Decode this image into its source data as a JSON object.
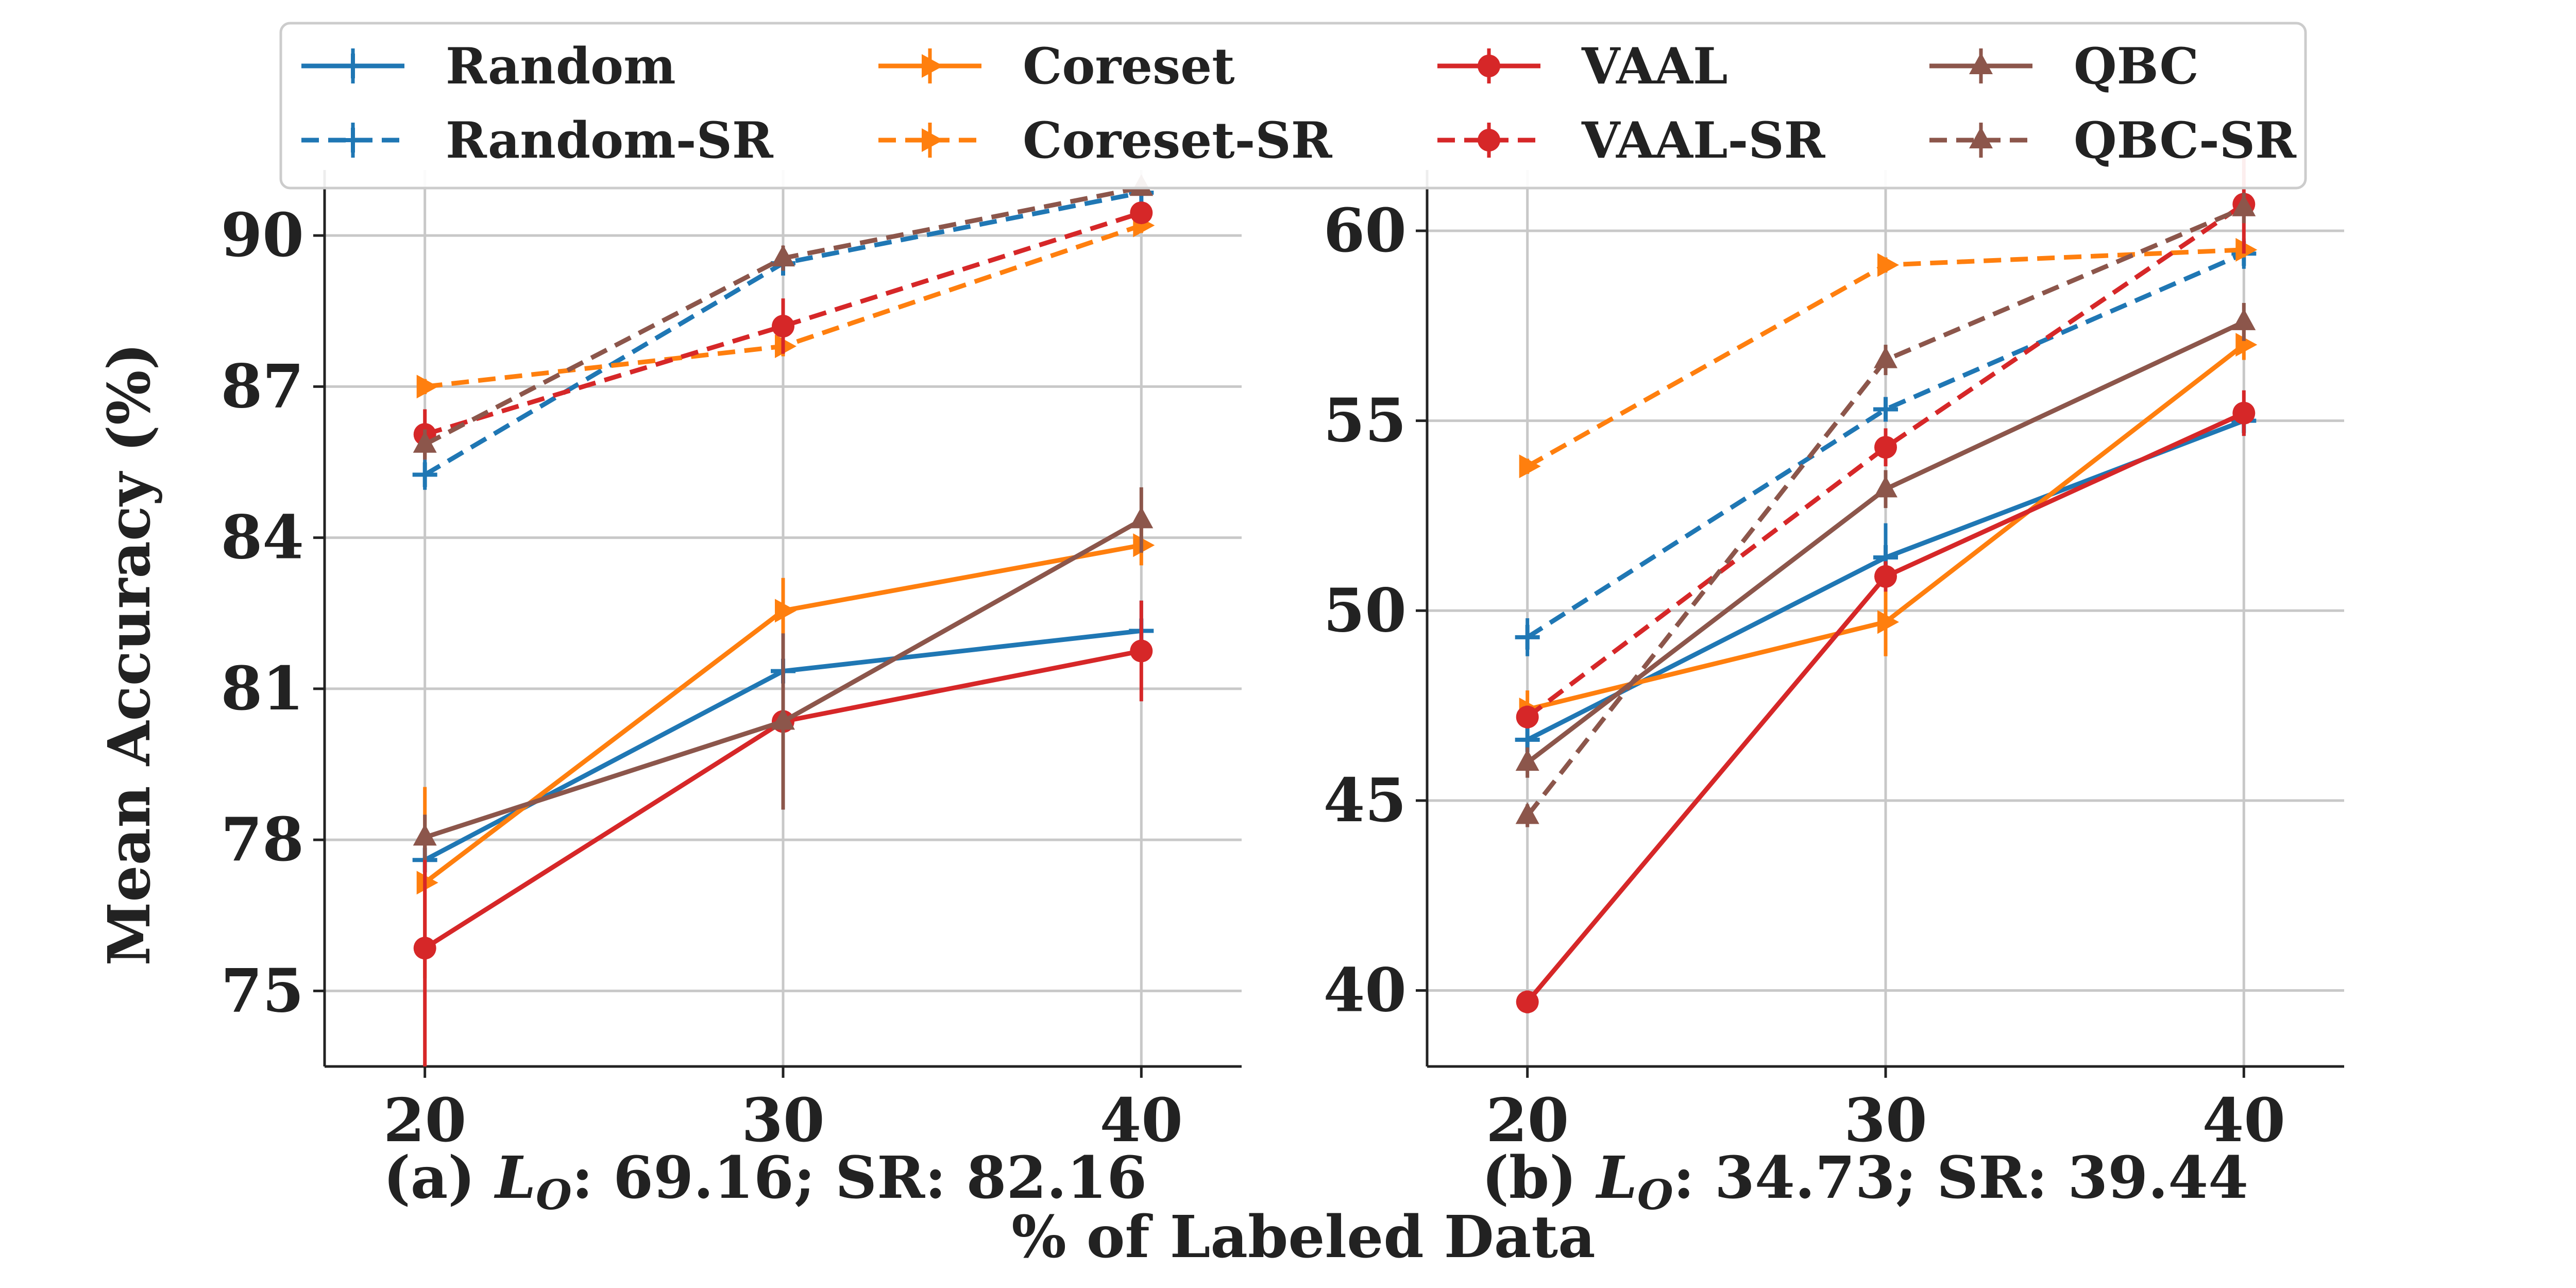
{
  "legend": {
    "placement": "top-center",
    "entries": [
      {
        "name": "Random",
        "color": "#1f77b4",
        "dash": "solid",
        "marker": "plus"
      },
      {
        "name": "Random-SR",
        "color": "#1f77b4",
        "dash": "dashed",
        "marker": "plus"
      },
      {
        "name": "Coreset",
        "color": "#ff7f0e",
        "dash": "solid",
        "marker": "tri-right"
      },
      {
        "name": "Coreset-SR",
        "color": "#ff7f0e",
        "dash": "dashed",
        "marker": "tri-right"
      },
      {
        "name": "VAAL",
        "color": "#d62728",
        "dash": "solid",
        "marker": "circle"
      },
      {
        "name": "VAAL-SR",
        "color": "#d62728",
        "dash": "dashed",
        "marker": "circle"
      },
      {
        "name": "QBC",
        "color": "#8c564b",
        "dash": "solid",
        "marker": "tri-up"
      },
      {
        "name": "QBC-SR",
        "color": "#8c564b",
        "dash": "dashed",
        "marker": "tri-up"
      }
    ]
  },
  "ylabel": "Mean Accuracy (%)",
  "xlabel": "% of Labeled Data",
  "chart_data": [
    {
      "type": "line",
      "caption_prefix": "(a) ",
      "caption_math": "L",
      "caption_sub": "O",
      "caption_suffix": ": 69.16; SR: 82.16",
      "x": [
        20,
        30,
        40
      ],
      "xlim": [
        17.2,
        42.8
      ],
      "ylim": [
        73.5,
        91.3
      ],
      "xticks": [
        20,
        30,
        40
      ],
      "yticks": [
        75,
        78,
        81,
        84,
        87,
        90
      ],
      "grid": true,
      "series": [
        {
          "name": "Random",
          "values": [
            77.6,
            81.35,
            82.15
          ],
          "err": [
            0.35,
            0.45,
            0.6
          ]
        },
        {
          "name": "Random-SR",
          "values": [
            85.25,
            89.45,
            90.85
          ],
          "err": [
            0.3,
            0.2,
            0.15
          ]
        },
        {
          "name": "Coreset",
          "values": [
            77.15,
            82.55,
            83.85
          ],
          "err": [
            1.9,
            0.65,
            0.4
          ]
        },
        {
          "name": "Coreset-SR",
          "values": [
            87.0,
            87.8,
            90.2
          ],
          "err": [
            0.15,
            0.2,
            0.15
          ]
        },
        {
          "name": "VAAL",
          "values": [
            75.85,
            80.35,
            81.75
          ],
          "err": [
            2.4,
            0.3,
            1.0
          ]
        },
        {
          "name": "VAAL-SR",
          "values": [
            86.05,
            88.2,
            90.45
          ],
          "err": [
            0.5,
            0.55,
            0.15
          ]
        },
        {
          "name": "QBC",
          "values": [
            78.05,
            80.35,
            84.35
          ],
          "err": [
            0.45,
            1.75,
            0.65
          ]
        },
        {
          "name": "QBC-SR",
          "values": [
            85.85,
            89.55,
            90.95
          ],
          "err": [
            0.3,
            0.25,
            0.15
          ]
        }
      ]
    },
    {
      "type": "line",
      "caption_prefix": "(b) ",
      "caption_math": "L",
      "caption_sub": "O",
      "caption_suffix": ": 34.73; SR: 39.44",
      "x": [
        20,
        30,
        40
      ],
      "xlim": [
        17.2,
        42.8
      ],
      "ylim": [
        38.0,
        61.6
      ],
      "xticks": [
        20,
        30,
        40
      ],
      "yticks": [
        40,
        45,
        50,
        55,
        60
      ],
      "grid": true,
      "series": [
        {
          "name": "Random",
          "values": [
            46.6,
            51.4,
            55.0
          ],
          "err": [
            0.4,
            0.9,
            0.4
          ]
        },
        {
          "name": "Random-SR",
          "values": [
            49.3,
            55.3,
            59.4
          ],
          "err": [
            0.5,
            0.3,
            0.4
          ]
        },
        {
          "name": "Coreset",
          "values": [
            47.4,
            49.7,
            57.0
          ],
          "err": [
            0.5,
            0.9,
            0.4
          ]
        },
        {
          "name": "Coreset-SR",
          "values": [
            53.8,
            59.1,
            59.5
          ],
          "err": [
            0.2,
            0.2,
            0.2
          ]
        },
        {
          "name": "VAAL",
          "values": [
            39.7,
            50.9,
            55.2
          ],
          "err": [
            0.3,
            0.4,
            0.6
          ]
        },
        {
          "name": "VAAL-SR",
          "values": [
            47.2,
            54.3,
            60.7
          ],
          "err": [
            0.3,
            0.5,
            1.3
          ]
        },
        {
          "name": "QBC",
          "values": [
            46.0,
            53.2,
            57.6
          ],
          "err": [
            0.4,
            0.5,
            0.5
          ]
        },
        {
          "name": "QBC-SR",
          "values": [
            44.6,
            56.6,
            60.6
          ],
          "err": [
            0.3,
            0.4,
            0.4
          ]
        }
      ]
    }
  ]
}
